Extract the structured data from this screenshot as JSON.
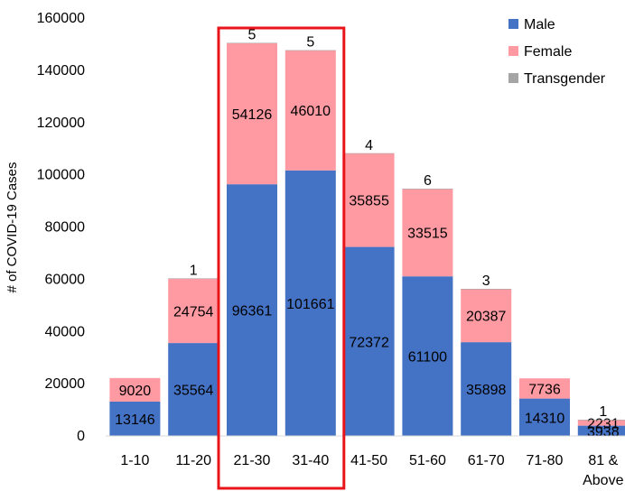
{
  "chart_data": {
    "type": "bar",
    "stacked": true,
    "title": "",
    "xlabel": "",
    "ylabel": "# of COVID-19 Cases",
    "ylim": [
      0,
      160000
    ],
    "yticks": [
      "0",
      "20000",
      "40000",
      "60000",
      "80000",
      "100000",
      "120000",
      "140000",
      "160000"
    ],
    "categories": [
      "1-10",
      "11-20",
      "21-30",
      "31-40",
      "41-50",
      "51-60",
      "61-70",
      "71-80",
      "81 & Above"
    ],
    "series": [
      {
        "name": "Male",
        "color": "#4472c4",
        "values": [
          13146,
          35564,
          96361,
          101661,
          72372,
          61100,
          35898,
          14310,
          3938
        ],
        "labels": [
          "13146",
          "35564",
          "96361",
          "101661",
          "72372",
          "61100",
          "35898",
          "14310",
          "3938"
        ]
      },
      {
        "name": "Female",
        "color": "#ff9aa2",
        "values": [
          9020,
          24754,
          54126,
          46010,
          35855,
          33515,
          20387,
          7736,
          2231
        ],
        "labels": [
          "9020",
          "24754",
          "54126",
          "46010",
          "35855",
          "33515",
          "20387",
          "7736",
          "2231"
        ]
      },
      {
        "name": "Transgender",
        "color": "#a5a5a5",
        "values": [
          0,
          1,
          5,
          5,
          4,
          6,
          3,
          0,
          1
        ],
        "labels": [
          "",
          "1",
          "5",
          "5",
          "4",
          "6",
          "3",
          "",
          "1"
        ]
      }
    ],
    "highlight": {
      "categories": [
        "21-30",
        "31-40"
      ],
      "color": "#e8141a"
    },
    "grid": false,
    "legend_position": "top-right"
  }
}
